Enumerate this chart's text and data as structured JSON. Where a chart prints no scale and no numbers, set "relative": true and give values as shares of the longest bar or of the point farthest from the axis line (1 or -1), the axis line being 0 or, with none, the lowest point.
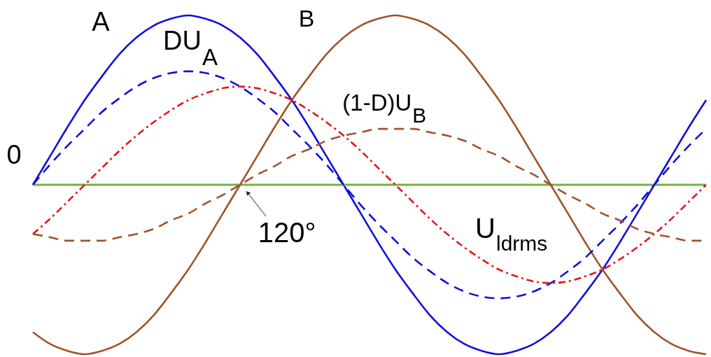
{
  "chart_data": {
    "type": "line",
    "relative": true,
    "categories": [
      null,
      null,
      null,
      null,
      null,
      null,
      null,
      null,
      null,
      null,
      null,
      null,
      null,
      null,
      null,
      null,
      null,
      null,
      null,
      null,
      null,
      null,
      null,
      null,
      null,
      null,
      null,
      null,
      null,
      null,
      null,
      null,
      null,
      null,
      null,
      null,
      null,
      null,
      null,
      null
    ],
    "series": [
      {
        "name": "A",
        "color": "#1010dd",
        "line_style": "solid",
        "values": [
          0,
          0.17,
          0.34,
          0.5,
          0.64,
          0.77,
          0.87,
          0.94,
          0.98,
          1,
          0.98,
          0.94,
          0.87,
          0.77,
          0.64,
          0.5,
          0.34,
          0.17,
          0,
          -0.17,
          -0.34,
          -0.5,
          -0.64,
          -0.77,
          -0.87,
          -0.94,
          -0.98,
          -1,
          -0.98,
          -0.94,
          -0.87,
          -0.77,
          -0.64,
          -0.5,
          -0.34,
          -0.17,
          0,
          0.17,
          0.34,
          0.5
        ]
      },
      {
        "name": "B",
        "color": "#a0522d",
        "line_style": "solid",
        "values": [
          -0.87,
          -0.94,
          -0.98,
          -1,
          -0.98,
          -0.94,
          -0.87,
          -0.77,
          -0.64,
          -0.5,
          -0.34,
          -0.17,
          0,
          0.17,
          0.34,
          0.5,
          0.64,
          0.77,
          0.87,
          0.94,
          0.98,
          1,
          0.98,
          0.94,
          0.87,
          0.77,
          0.64,
          0.5,
          0.34,
          0.17,
          0,
          -0.17,
          -0.34,
          -0.5,
          -0.64,
          -0.77,
          -0.87,
          -0.94,
          -0.98,
          -1
        ]
      },
      {
        "name": "DU$_{A}$",
        "color": "#1010dd",
        "line_style": "dashed",
        "values": [
          0,
          0.12,
          0.23,
          0.33,
          0.43,
          0.51,
          0.58,
          0.63,
          0.66,
          0.67,
          0.66,
          0.63,
          0.58,
          0.51,
          0.43,
          0.33,
          0.23,
          0.12,
          0,
          -0.12,
          -0.23,
          -0.33,
          -0.43,
          -0.51,
          -0.58,
          -0.63,
          -0.66,
          -0.67,
          -0.66,
          -0.63,
          -0.58,
          -0.51,
          -0.43,
          -0.33,
          -0.23,
          -0.12,
          0,
          0.12,
          0.23,
          0.33
        ]
      },
      {
        "name": "(1-D)U$_{B}$",
        "color": "#a0522d",
        "line_style": "dashed",
        "values": [
          -0.29,
          -0.31,
          -0.33,
          -0.33,
          -0.33,
          -0.31,
          -0.29,
          -0.26,
          -0.21,
          -0.17,
          -0.11,
          -0.06,
          0,
          0.06,
          0.11,
          0.17,
          0.21,
          0.26,
          0.29,
          0.31,
          0.33,
          0.33,
          0.33,
          0.31,
          0.29,
          0.26,
          0.21,
          0.17,
          0.11,
          0.06,
          0,
          -0.06,
          -0.11,
          -0.17,
          -0.21,
          -0.26,
          -0.29,
          -0.31,
          -0.33,
          -0.33
        ]
      },
      {
        "name": "U$_{ldrms}$",
        "color": "#e8131b",
        "line_style": "dashdot",
        "values": [
          -0.29,
          -0.2,
          -0.1,
          0,
          0.1,
          0.2,
          0.29,
          0.37,
          0.44,
          0.5,
          0.54,
          0.57,
          0.58,
          0.57,
          0.54,
          0.5,
          0.44,
          0.37,
          0.29,
          0.2,
          0.1,
          0,
          -0.1,
          -0.2,
          -0.29,
          -0.37,
          -0.44,
          -0.5,
          -0.54,
          -0.57,
          -0.58,
          -0.57,
          -0.54,
          -0.5,
          -0.44,
          -0.37,
          -0.29,
          -0.2,
          -0.1,
          0
        ]
      }
    ],
    "ref_lines": [
      {
        "axis": "y",
        "value": 0,
        "color": "#77b043"
      }
    ],
    "annotations": [
      "0",
      "120°"
    ]
  }
}
